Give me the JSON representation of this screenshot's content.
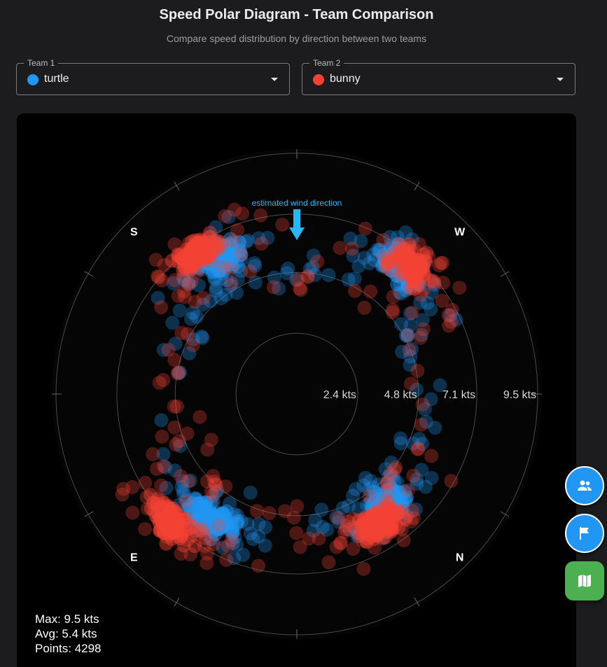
{
  "header": {
    "title": "Speed Polar Diagram - Team Comparison",
    "subtitle": "Compare speed distribution by direction between two teams"
  },
  "team1": {
    "label": "Team 1",
    "value": "turtle",
    "color": "#2196f3"
  },
  "team2": {
    "label": "Team 2",
    "value": "bunny",
    "color": "#f44336"
  },
  "stats": {
    "max": "Max: 9.5 kts",
    "avg": "Avg: 5.4 kts",
    "points": "Points: 4298"
  },
  "fabs": [
    {
      "name": "teams-button",
      "icon": "group-icon"
    },
    {
      "name": "flag-button",
      "icon": "flag-icon"
    },
    {
      "name": "map-button",
      "icon": "map-icon"
    }
  ],
  "chart_data": {
    "type": "scatter",
    "subtype": "polar",
    "wind_annotation": "estimated wind direction",
    "direction_labels": [
      "S",
      "W",
      "N",
      "E"
    ],
    "radial_ticks": [
      2.4,
      4.8,
      7.1,
      9.5
    ],
    "radial_tick_labels": [
      "2.4 kts",
      "4.8 kts",
      "7.1 kts",
      "9.5 kts"
    ],
    "rmax": 9.5,
    "max_speed_kts": 9.5,
    "avg_speed_kts": 5.4,
    "point_count": 4298,
    "series": [
      {
        "name": "turtle",
        "color": "#2196f3",
        "clusters": [
          {
            "angle_deg": -30,
            "speed_kts": 6.2
          },
          {
            "angle_deg": 40,
            "speed_kts": 6.5
          },
          {
            "angle_deg": 140,
            "speed_kts": 5.6
          },
          {
            "angle_deg": 215,
            "speed_kts": 6.0
          }
        ]
      },
      {
        "name": "bunny",
        "color": "#f44336",
        "clusters": [
          {
            "angle_deg": -35,
            "speed_kts": 6.8
          },
          {
            "angle_deg": 42,
            "speed_kts": 6.8
          },
          {
            "angle_deg": 148,
            "speed_kts": 6.1
          },
          {
            "angle_deg": 224,
            "speed_kts": 7.1
          }
        ]
      }
    ]
  }
}
